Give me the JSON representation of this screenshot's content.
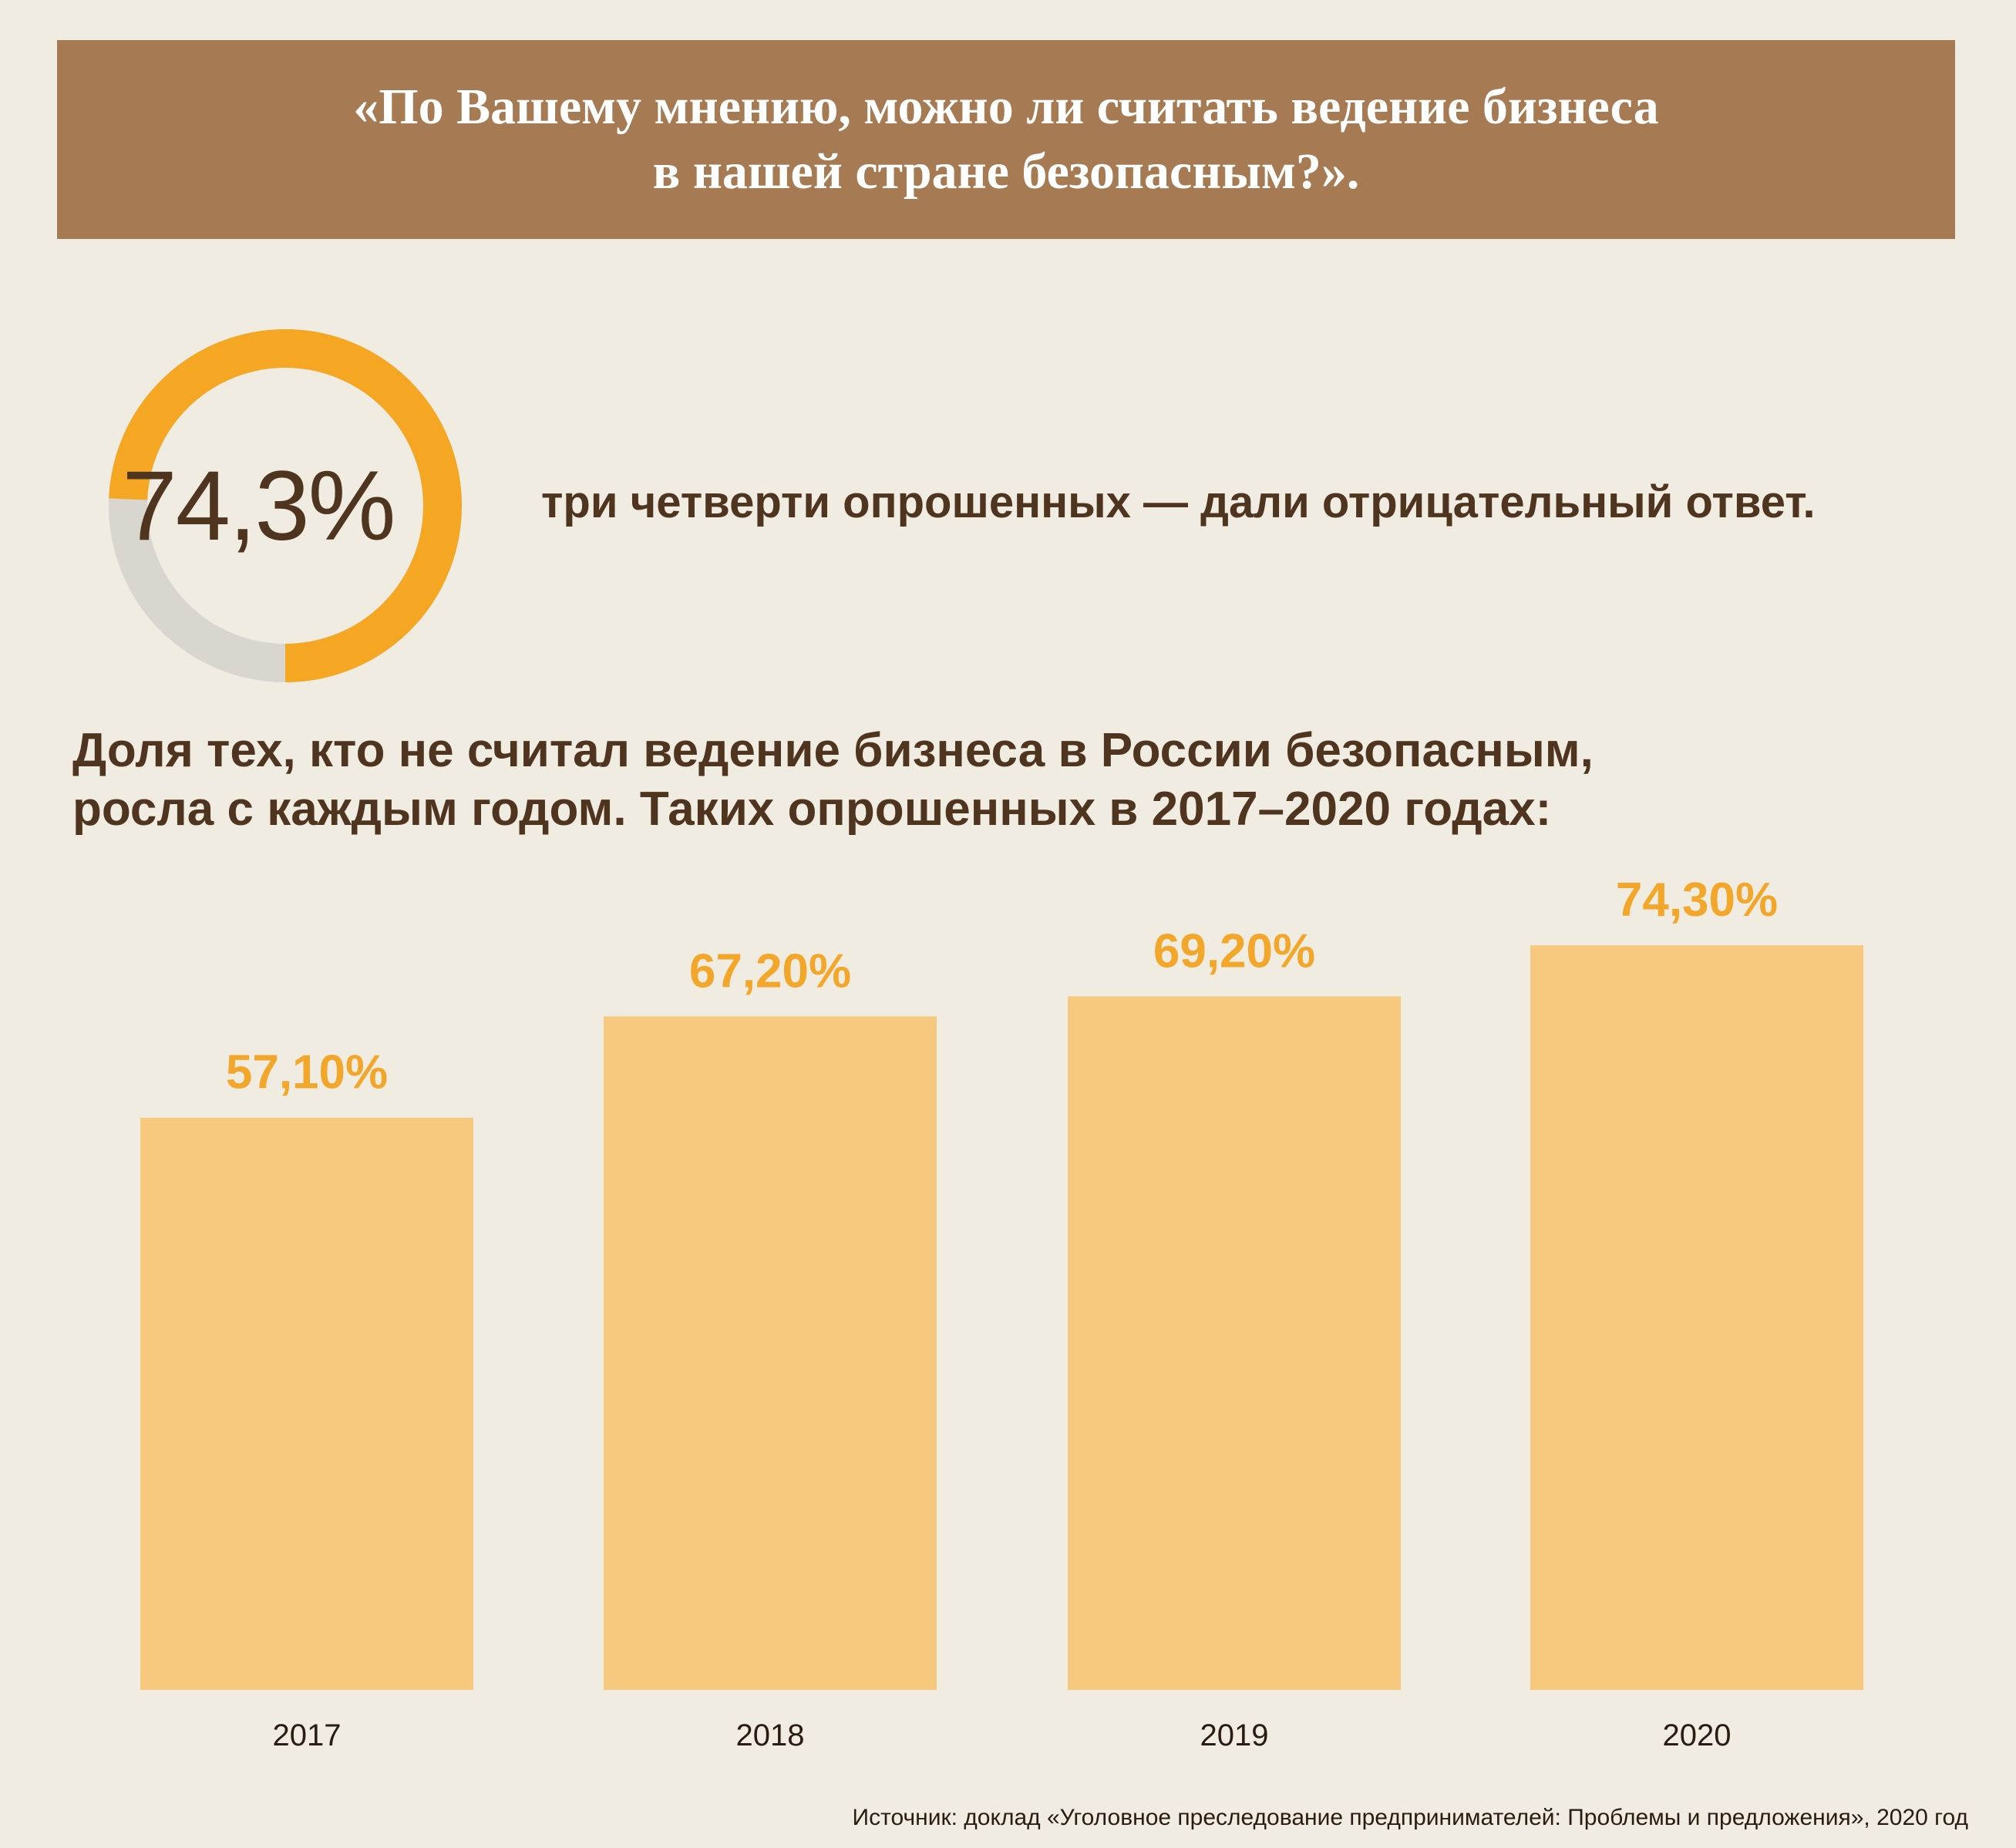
{
  "header": {
    "line1": "«По Вашему мнению, можно ли считать ведение бизнеса",
    "line2": "в нашей стране безопасным?»."
  },
  "donut": {
    "label": "74,3%",
    "fraction": 0.743,
    "caption": "три четверти опрошенных — дали отрицательный ответ.",
    "fill_color": "#f5a623",
    "track_color": "#d9d6d0"
  },
  "subtitle": {
    "line1": "Доля тех, кто не считал ведение бизнеса в России безопасным,",
    "line2": "росла с каждым годом. Таких опрошенных в 2017–2020 годах:"
  },
  "chart_data": {
    "type": "bar",
    "categories": [
      "2017",
      "2018",
      "2019",
      "2020"
    ],
    "values": [
      57.1,
      67.2,
      69.2,
      74.3
    ],
    "value_labels": [
      "57,10%",
      "67,20%",
      "69,20%",
      "74,30%"
    ],
    "title": "",
    "xlabel": "",
    "ylabel": "",
    "ylim": [
      0,
      100
    ],
    "grid": false,
    "bar_color": "#f7c97e",
    "label_color": "#f2a72b"
  },
  "source": "Источник: доклад «Уголовное преследование предпринимателей: Проблемы и предложения», 2020 год"
}
